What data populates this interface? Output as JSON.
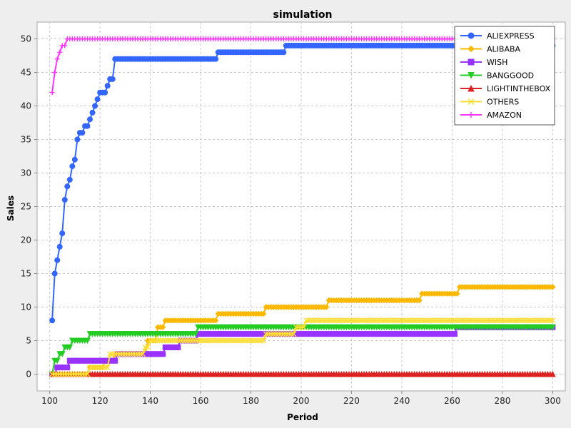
{
  "chart_data": {
    "type": "line",
    "title": "simulation",
    "xlabel": "Period",
    "ylabel": "Sales",
    "xlim": [
      95,
      305
    ],
    "ylim": [
      -2.5,
      52.5
    ],
    "xticks": [
      100,
      120,
      140,
      160,
      180,
      200,
      220,
      240,
      260,
      280,
      300
    ],
    "yticks": [
      0,
      5,
      10,
      15,
      20,
      25,
      30,
      35,
      40,
      45,
      50
    ],
    "grid": true,
    "legend_position": "top-right",
    "series": [
      {
        "name": "ALIEXPRESS",
        "color": "#3366ff",
        "marker": "circle",
        "steps": [
          [
            101,
            8
          ],
          [
            102,
            15
          ],
          [
            103,
            17
          ],
          [
            104,
            19
          ],
          [
            105,
            21
          ],
          [
            106,
            26
          ],
          [
            107,
            28
          ],
          [
            108,
            29
          ],
          [
            109,
            31
          ],
          [
            110,
            32
          ],
          [
            111,
            35
          ],
          [
            112,
            36
          ],
          [
            114,
            37
          ],
          [
            116,
            38
          ],
          [
            117,
            39
          ],
          [
            118,
            40
          ],
          [
            119,
            41
          ],
          [
            120,
            42
          ],
          [
            123,
            43
          ],
          [
            124,
            44
          ],
          [
            126,
            47
          ],
          [
            167,
            48
          ],
          [
            194,
            49
          ],
          [
            300,
            49
          ]
        ]
      },
      {
        "name": "ALIBABA",
        "color": "#ffb800",
        "marker": "diamond",
        "steps": [
          [
            101,
            0
          ],
          [
            116,
            1
          ],
          [
            122,
            2
          ],
          [
            126,
            3
          ],
          [
            139,
            5
          ],
          [
            143,
            7
          ],
          [
            146,
            8
          ],
          [
            167,
            9
          ],
          [
            186,
            10
          ],
          [
            211,
            11
          ],
          [
            248,
            12
          ],
          [
            263,
            13
          ],
          [
            300,
            13
          ]
        ]
      },
      {
        "name": "WISH",
        "color": "#9933ff",
        "marker": "square",
        "steps": [
          [
            101,
            0
          ],
          [
            103,
            1
          ],
          [
            108,
            2
          ],
          [
            122,
            2
          ],
          [
            127,
            3
          ],
          [
            141,
            3
          ],
          [
            146,
            4
          ],
          [
            152,
            5
          ],
          [
            159,
            6
          ],
          [
            262,
            7
          ],
          [
            300,
            7
          ]
        ]
      },
      {
        "name": "BANGGOOD",
        "color": "#22cc22",
        "marker": "triangle-down",
        "steps": [
          [
            101,
            0
          ],
          [
            102,
            2
          ],
          [
            104,
            3
          ],
          [
            106,
            4
          ],
          [
            109,
            5
          ],
          [
            116,
            6
          ],
          [
            159,
            7
          ],
          [
            300,
            7
          ]
        ]
      },
      {
        "name": "LIGHTINTHEBOX",
        "color": "#dd2222",
        "marker": "triangle-up",
        "steps": [
          [
            101,
            0
          ],
          [
            300,
            0
          ]
        ]
      },
      {
        "name": "OTHERS",
        "color": "#ffdd33",
        "marker": "x",
        "steps": [
          [
            101,
            0
          ],
          [
            116,
            1
          ],
          [
            124,
            3
          ],
          [
            138,
            4
          ],
          [
            140,
            5
          ],
          [
            159,
            5
          ],
          [
            186,
            6
          ],
          [
            198,
            7
          ],
          [
            202,
            8
          ],
          [
            300,
            8
          ]
        ]
      },
      {
        "name": "AMAZON",
        "color": "#ff33ff",
        "marker": "plus",
        "steps": [
          [
            101,
            42
          ],
          [
            102,
            45
          ],
          [
            103,
            47
          ],
          [
            104,
            48
          ],
          [
            105,
            49
          ],
          [
            107,
            50
          ],
          [
            300,
            50
          ]
        ]
      }
    ]
  }
}
